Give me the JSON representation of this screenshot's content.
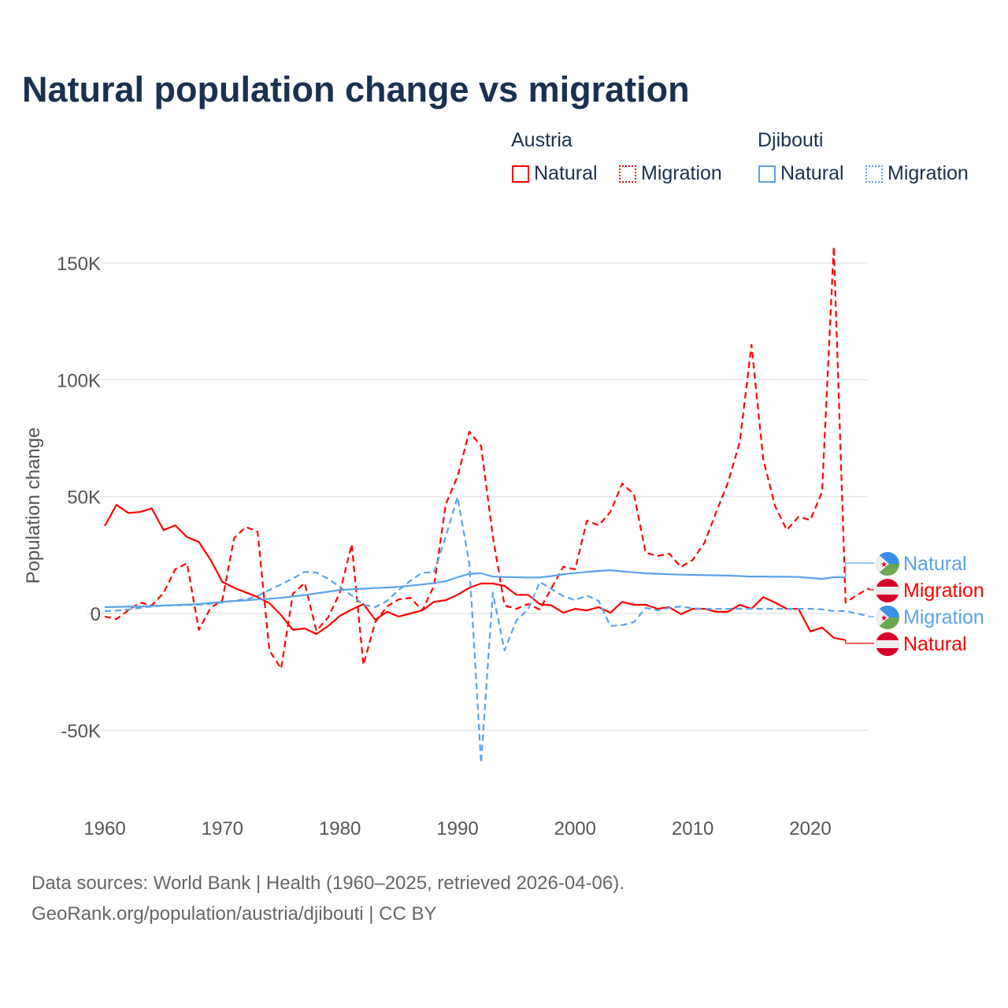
{
  "title": "Natural population change vs migration",
  "legend": {
    "groups": [
      {
        "name": "Austria",
        "color": "#ff0000",
        "items": [
          "Natural",
          "Migration"
        ]
      },
      {
        "name": "Djibouti",
        "color": "#5aa2e8",
        "items": [
          "Natural",
          "Migration"
        ]
      }
    ]
  },
  "footer": {
    "line1": "Data sources: World Bank | Health (1960–2025, retrieved 2026-04-06).",
    "line2": "GeoRank.org/population/austria/djibouti | CC BY"
  },
  "chart_data": {
    "type": "line",
    "title": "Natural population change vs migration",
    "xlabel": "",
    "ylabel": "Population change",
    "xlim": [
      1960,
      2025
    ],
    "ylim": [
      -70000,
      160000
    ],
    "yticks": [
      -50000,
      0,
      50000,
      100000,
      150000
    ],
    "ytick_labels": [
      "-50K",
      "0",
      "50K",
      "100K",
      "150K"
    ],
    "xticks": [
      1960,
      1970,
      1980,
      1990,
      2000,
      2010,
      2020
    ],
    "xtick_labels": [
      "1960",
      "1970",
      "1980",
      "1990",
      "2000",
      "2010",
      "2020"
    ],
    "grid": true,
    "series": [
      {
        "name": "Austria Natural",
        "label": "Natural",
        "color": "#ff0000",
        "dash": false,
        "start": 1960,
        "values": [
          37.4,
          46.5,
          43,
          43.4,
          45,
          35.7,
          37.7,
          32.7,
          30.6,
          23,
          13.5,
          11,
          9,
          7,
          4.4,
          -0.7,
          -7,
          -6.4,
          -8.8,
          -5.4,
          -1,
          1.7,
          4,
          -2.7,
          0.7,
          -1.3,
          0,
          1.3,
          5,
          5.7,
          8,
          11,
          12.8,
          12.8,
          11.8,
          8,
          8,
          4,
          3.4,
          0.3,
          2,
          1.3,
          2.7,
          0.3,
          5,
          3.7,
          3.7,
          2,
          2.7,
          -0.3,
          2,
          2,
          0.7,
          0.7,
          3.7,
          2,
          7,
          4.7,
          2,
          2,
          -7.7,
          -6,
          -10.4,
          -11.4
        ]
      },
      {
        "name": "Austria Migration",
        "label": "Migration",
        "color": "#ff0000",
        "dash": true,
        "start": 1960,
        "values": [
          -1.3,
          -2.4,
          1.3,
          4.7,
          3.4,
          8.8,
          18.9,
          21.5,
          -7,
          2.4,
          5.7,
          32.3,
          37,
          35,
          -15.8,
          -23.6,
          8.4,
          13,
          -7.4,
          -1.7,
          9,
          29.6,
          -22,
          -3.7,
          3,
          6,
          6.7,
          1.3,
          11.8,
          46.8,
          58.6,
          77.8,
          71.7,
          33,
          3.4,
          2,
          4,
          1.7,
          11,
          20,
          18.9,
          39.7,
          37.7,
          43.4,
          55.6,
          51,
          26,
          24.6,
          25.6,
          19.9,
          22.9,
          30.3,
          43.4,
          56,
          73.4,
          115,
          66,
          46,
          35.7,
          41.4,
          40,
          52,
          157,
          4.7,
          8,
          10.8
        ]
      },
      {
        "name": "Djibouti Natural",
        "label": "Natural",
        "color": "#5aa2e8",
        "dash": false,
        "start": 1960,
        "values": [
          2.7,
          2.8,
          2.9,
          3,
          3.2,
          3.4,
          3.6,
          3.8,
          4,
          4.5,
          5,
          5.3,
          5.6,
          6,
          6.3,
          6.7,
          7.3,
          7.9,
          8.6,
          9.3,
          10,
          10.3,
          10.6,
          10.9,
          11.1,
          11.4,
          11.9,
          12.4,
          13,
          13.8,
          15.5,
          17,
          17.2,
          15.8,
          15.6,
          15.5,
          15.4,
          15.4,
          16,
          16.8,
          17.3,
          17.8,
          18.2,
          18.5,
          18,
          17.6,
          17.2,
          17,
          16.8,
          16.6,
          16.5,
          16.4,
          16.3,
          16.2,
          16,
          15.8,
          15.8,
          15.7,
          15.7,
          15.6,
          15.2,
          14.8,
          15.5,
          15.5
        ]
      },
      {
        "name": "Djibouti Migration",
        "label": "Migration",
        "color": "#5aa2e8",
        "dash": true,
        "start": 1960,
        "values": [
          1,
          1.2,
          1.7,
          2.4,
          3,
          3.4,
          3.5,
          3.6,
          3.7,
          4.2,
          4.7,
          5.5,
          6,
          7.5,
          10,
          12.5,
          15,
          17.8,
          17.5,
          14.8,
          11.4,
          7.7,
          3.7,
          2.7,
          5.4,
          10,
          14,
          17.5,
          17.5,
          33,
          49.8,
          21.5,
          -64,
          8.8,
          -15.8,
          -3,
          1.7,
          13.5,
          10.4,
          7.4,
          5.7,
          7.7,
          5.4,
          -5.4,
          -5,
          -3.7,
          2.4,
          1.3,
          2.4,
          3,
          2.2,
          2,
          2,
          2,
          2,
          2,
          2,
          2,
          2,
          2,
          2,
          1.8,
          1,
          1,
          0,
          -1.3
        ]
      }
    ],
    "end_labels": [
      {
        "text": "Natural",
        "country": "Djibouti",
        "color": "#5aa2e8"
      },
      {
        "text": "Migration",
        "country": "Austria",
        "color": "#ff0000"
      },
      {
        "text": "Migration",
        "country": "Djibouti",
        "color": "#5aa2e8"
      },
      {
        "text": "Natural",
        "country": "Austria",
        "color": "#ff0000"
      }
    ]
  }
}
